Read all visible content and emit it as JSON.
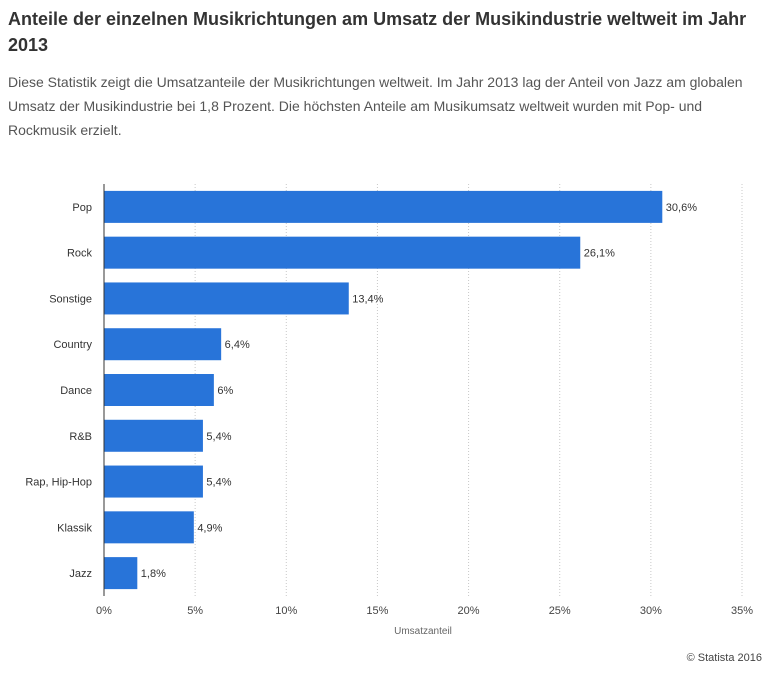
{
  "header": {
    "title": "Anteile der einzelnen Musikrichtungen am Umsatz der Musikindustrie weltweit im Jahr 2013",
    "subtitle": "Diese Statistik zeigt die Umsatzanteile der Musikrichtungen weltweit. Im Jahr 2013 lag der Anteil von Jazz am globalen Umsatz der Musikindustrie bei 1,8 Prozent. Die höchsten Anteile am Musikumsatz weltweit wurden mit Pop- und Rockmusik erzielt."
  },
  "chart_data": {
    "type": "bar",
    "orientation": "horizontal",
    "categories": [
      "Pop",
      "Rock",
      "Sonstige",
      "Country",
      "Dance",
      "R&B",
      "Rap, Hip-Hop",
      "Klassik",
      "Jazz"
    ],
    "values": [
      30.6,
      26.1,
      13.4,
      6.4,
      6,
      5.4,
      5.4,
      4.9,
      1.8
    ],
    "value_labels": [
      "30,6%",
      "26,1%",
      "13,4%",
      "6,4%",
      "6%",
      "5,4%",
      "5,4%",
      "4,9%",
      "1,8%"
    ],
    "xlabel": "Umsatzanteil",
    "xlim": [
      0,
      35
    ],
    "xticks": [
      0,
      5,
      10,
      15,
      20,
      25,
      30,
      35
    ],
    "xtick_labels": [
      "0%",
      "5%",
      "10%",
      "15%",
      "20%",
      "25%",
      "30%",
      "35%"
    ],
    "grid": true,
    "bar_color": "#2874d9"
  },
  "footer": {
    "copyright": "© Statista 2016"
  }
}
